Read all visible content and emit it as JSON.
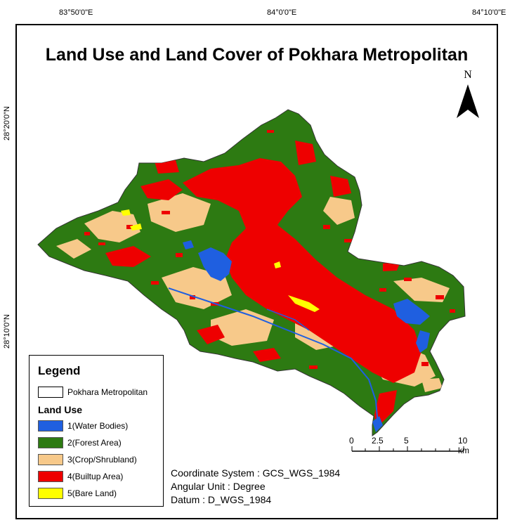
{
  "map": {
    "title": "Land Use and Land Cover of Pokhara Metropolitan",
    "longitude_ticks": [
      "83°50'0\"E",
      "84°0'0\"E",
      "84°10'0\"E"
    ],
    "latitude_ticks": [
      "28°20'0\"N",
      "28°10'0\"N"
    ],
    "north_arrow": "N",
    "colors": {
      "water": "#1f5fe0",
      "forest": "#2d7a12",
      "crop": "#f7c98a",
      "builtup": "#ee0000",
      "bare": "#ffff00"
    }
  },
  "legend": {
    "title": "Legend",
    "boundary_label": "Pokhara Metropolitan",
    "section_title": "Land Use",
    "classes": [
      {
        "label": "1(Water Bodies)",
        "color": "#1f5fe0"
      },
      {
        "label": "2(Forest Area)",
        "color": "#2d7a12"
      },
      {
        "label": "3(Crop/Shrubland)",
        "color": "#f7c98a"
      },
      {
        "label": "4(Builtup Area)",
        "color": "#ee0000"
      },
      {
        "label": "5(Bare Land)",
        "color": "#ffff00"
      }
    ]
  },
  "scale_bar": {
    "labels": [
      "0",
      "2.5",
      "5",
      "10 km"
    ]
  },
  "info": {
    "coordinate_system": "Coordinate System : GCS_WGS_1984",
    "angular_unit": "Angular Unit : Degree",
    "datum": "Datum : D_WGS_1984"
  }
}
